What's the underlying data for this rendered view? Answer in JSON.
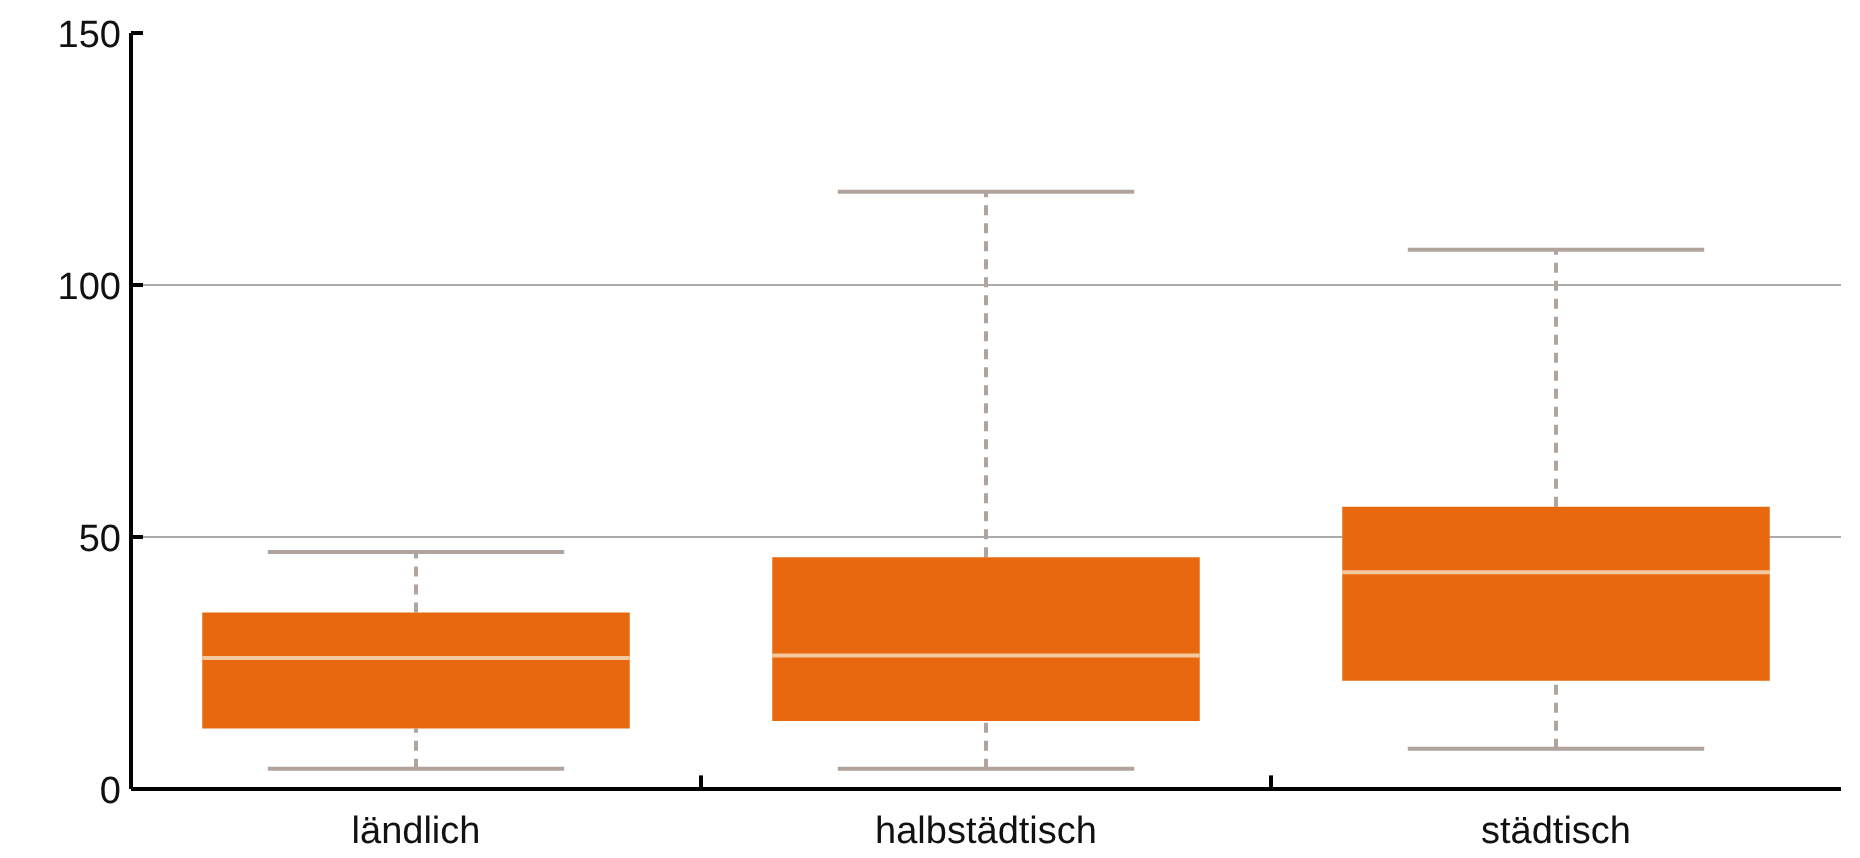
{
  "chart_data": {
    "type": "box",
    "categories": [
      "ländlich",
      "halbstädtisch",
      "städtisch"
    ],
    "boxes": [
      {
        "low": 4,
        "q1": 12,
        "median": 26,
        "q3": 35,
        "high": 47
      },
      {
        "low": 4,
        "q1": 13.5,
        "median": 26.5,
        "q3": 46,
        "high": 118.5
      },
      {
        "low": 8,
        "q1": 21.5,
        "median": 43,
        "q3": 56,
        "high": 107
      }
    ],
    "color": "#e8680f",
    "ylim": [
      0,
      150
    ],
    "yticks": [
      0,
      50,
      100,
      150
    ],
    "grid": "y"
  }
}
